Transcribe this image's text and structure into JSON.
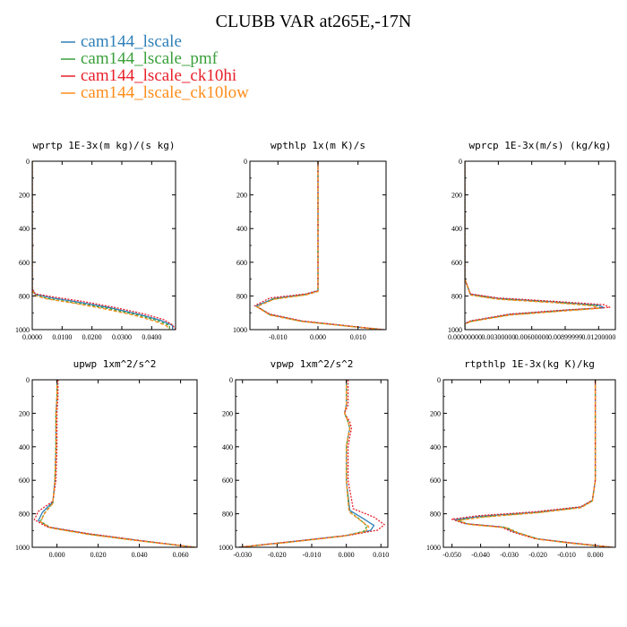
{
  "figure": {
    "title": "CLUBB VAR at265E,-17N"
  },
  "legend": [
    {
      "label": "cam144_lscale",
      "color": "#2f7fb8"
    },
    {
      "label": "cam144_lscale_pmf",
      "color": "#3aa03a"
    },
    {
      "label": "cam144_lscale_ck10hi",
      "color": "#e8202a"
    },
    {
      "label": "cam144_lscale_ck10low",
      "color": "#ff8c1a"
    }
  ],
  "chart_data": [
    {
      "type": "line",
      "title": "wprtp  1E-3x(m kg)/(s kg)",
      "xlim": [
        0,
        0.048
      ],
      "ylim": [
        0,
        1000
      ],
      "y_inverted": true,
      "xticks": [
        0,
        0.01,
        0.02,
        0.03,
        0.04
      ],
      "xtick_labels": [
        "0.0000",
        "0.0100",
        "0.0200",
        "0.0300",
        "0.0400"
      ],
      "yticks": [
        0,
        200,
        400,
        600,
        800,
        1000
      ],
      "ytick_labels": [
        "0",
        "200",
        "400",
        "600",
        "800",
        "1000"
      ],
      "series": [
        {
          "color": "#2f7fb8",
          "x": [
            0,
            0,
            0,
            0,
            0,
            0,
            0.001,
            0.006,
            0.015,
            0.026,
            0.036,
            0.043,
            0.047,
            0.047
          ],
          "y": [
            0,
            200,
            400,
            600,
            700,
            760,
            790,
            810,
            835,
            870,
            910,
            945,
            975,
            1000
          ]
        },
        {
          "color": "#3aa03a",
          "x": [
            0,
            0,
            0,
            0,
            0,
            0,
            0.001,
            0.005,
            0.014,
            0.025,
            0.035,
            0.042,
            0.046,
            0.046
          ],
          "y": [
            0,
            200,
            400,
            600,
            700,
            765,
            795,
            815,
            840,
            873,
            912,
            947,
            976,
            1000
          ]
        },
        {
          "color": "#e8202a",
          "x": [
            0,
            0,
            0,
            0,
            0,
            0,
            0.001,
            0.007,
            0.016,
            0.027,
            0.037,
            0.044,
            0.047,
            0.048
          ],
          "y": [
            0,
            200,
            400,
            600,
            700,
            758,
            787,
            806,
            830,
            866,
            905,
            940,
            972,
            1000
          ]
        },
        {
          "color": "#ff8c1a",
          "x": [
            0,
            0,
            0,
            0,
            0,
            0,
            0.001,
            0.005,
            0.014,
            0.024,
            0.034,
            0.041,
            0.045,
            0.046
          ],
          "y": [
            0,
            200,
            400,
            600,
            700,
            768,
            798,
            818,
            843,
            876,
            914,
            949,
            978,
            1000
          ]
        }
      ]
    },
    {
      "type": "line",
      "title": "wpthlp  1x(m K)/s",
      "xlim": [
        -0.017,
        0.017
      ],
      "ylim": [
        0,
        1000
      ],
      "y_inverted": true,
      "xticks": [
        -0.01,
        0,
        0.01
      ],
      "xtick_labels": [
        "-0.010",
        "0.000",
        "0.010"
      ],
      "yticks": [
        0,
        200,
        400,
        600,
        800,
        1000
      ],
      "ytick_labels": [
        "0",
        "200",
        "400",
        "600",
        "800",
        "1000"
      ],
      "series": [
        {
          "color": "#2f7fb8",
          "x": [
            0,
            0,
            0,
            0,
            0,
            0,
            -0.003,
            -0.011,
            -0.0155,
            -0.012,
            -0.004,
            0.008,
            0.016
          ],
          "y": [
            0,
            200,
            400,
            600,
            700,
            770,
            790,
            815,
            860,
            910,
            950,
            980,
            1000
          ]
        },
        {
          "color": "#3aa03a",
          "x": [
            0,
            0,
            0,
            0,
            0,
            0,
            -0.003,
            -0.011,
            -0.0152,
            -0.012,
            -0.004,
            0.008,
            0.016
          ],
          "y": [
            0,
            200,
            400,
            600,
            700,
            772,
            792,
            818,
            862,
            912,
            951,
            980,
            1000
          ]
        },
        {
          "color": "#e8202a",
          "x": [
            0,
            0,
            0,
            0,
            0,
            0,
            -0.003,
            -0.012,
            -0.0158,
            -0.012,
            -0.004,
            0.008,
            0.0165
          ],
          "y": [
            0,
            200,
            400,
            600,
            700,
            768,
            788,
            812,
            858,
            908,
            948,
            979,
            1000
          ]
        },
        {
          "color": "#ff8c1a",
          "x": [
            0,
            0,
            0,
            0,
            0,
            0,
            -0.003,
            -0.011,
            -0.0153,
            -0.012,
            -0.004,
            0.008,
            0.016
          ],
          "y": [
            0,
            200,
            400,
            600,
            700,
            774,
            794,
            820,
            864,
            914,
            952,
            981,
            1000
          ]
        }
      ]
    },
    {
      "type": "line",
      "title": "wprcp  1E-3x(m/s) (kg/kg)",
      "xlim": [
        0,
        0.0135
      ],
      "ylim": [
        0,
        1000
      ],
      "y_inverted": true,
      "xticks": [
        0,
        0.003,
        0.006,
        0.009,
        0.012
      ],
      "xtick_labels": [
        "0.00000000",
        "0.00300000",
        "0.00600000",
        "0.00899999",
        "0.01200000"
      ],
      "yticks": [
        0,
        200,
        400,
        600,
        800,
        1000
      ],
      "ytick_labels": [
        "0",
        "200",
        "400",
        "600",
        "800",
        "1000"
      ],
      "series": [
        {
          "color": "#2f7fb8",
          "x": [
            0,
            0,
            0,
            0,
            0,
            0.0005,
            0.003,
            0.008,
            0.012,
            0.0125,
            0.009,
            0.004,
            0.0005,
            0,
            0
          ],
          "y": [
            0,
            200,
            400,
            600,
            700,
            790,
            815,
            835,
            855,
            870,
            885,
            910,
            950,
            965,
            1000
          ]
        },
        {
          "color": "#3aa03a",
          "x": [
            0,
            0,
            0,
            0,
            0,
            0.0005,
            0.003,
            0.008,
            0.0118,
            0.0122,
            0.009,
            0.004,
            0.0005,
            0,
            0
          ],
          "y": [
            0,
            200,
            400,
            600,
            700,
            793,
            818,
            838,
            857,
            872,
            887,
            912,
            952,
            966,
            1000
          ]
        },
        {
          "color": "#e8202a",
          "x": [
            0,
            0,
            0,
            0,
            0,
            0.0005,
            0.003,
            0.008,
            0.0125,
            0.013,
            0.009,
            0.004,
            0.0005,
            0,
            0
          ],
          "y": [
            0,
            200,
            400,
            600,
            700,
            788,
            812,
            832,
            852,
            868,
            883,
            908,
            948,
            964,
            1000
          ]
        },
        {
          "color": "#ff8c1a",
          "x": [
            0,
            0,
            0,
            0,
            0,
            0.0005,
            0.003,
            0.008,
            0.0115,
            0.012,
            0.009,
            0.004,
            0.0005,
            0,
            0
          ],
          "y": [
            0,
            200,
            400,
            600,
            700,
            795,
            820,
            840,
            859,
            874,
            889,
            914,
            953,
            967,
            1000
          ]
        }
      ]
    },
    {
      "type": "line",
      "title": "upwp  1xm^2/s^2",
      "xlim": [
        -0.012,
        0.068
      ],
      "ylim": [
        0,
        1000
      ],
      "y_inverted": true,
      "xticks": [
        0,
        0.02,
        0.04,
        0.06
      ],
      "xtick_labels": [
        "0.000",
        "0.020",
        "0.040",
        "0.060"
      ],
      "yticks": [
        0,
        200,
        400,
        600,
        800,
        1000
      ],
      "ytick_labels": [
        "0",
        "200",
        "400",
        "600",
        "800",
        "1000"
      ],
      "series": [
        {
          "color": "#2f7fb8",
          "x": [
            0,
            0,
            -0.0005,
            -0.0005,
            -0.001,
            -0.002,
            -0.007,
            -0.009,
            -0.004,
            0.015,
            0.04,
            0.067
          ],
          "y": [
            0,
            100,
            200,
            400,
            600,
            730,
            790,
            840,
            880,
            920,
            960,
            1000
          ]
        },
        {
          "color": "#3aa03a",
          "x": [
            0,
            0,
            -0.0005,
            -0.0005,
            -0.001,
            -0.002,
            -0.006,
            -0.008,
            -0.003,
            0.015,
            0.04,
            0.067
          ],
          "y": [
            0,
            100,
            200,
            400,
            600,
            735,
            795,
            845,
            883,
            922,
            961,
            1000
          ]
        },
        {
          "color": "#e8202a",
          "x": [
            0.0005,
            0.0005,
            0,
            0,
            -0.0005,
            -0.002,
            -0.009,
            -0.011,
            -0.005,
            0.015,
            0.04,
            0.067
          ],
          "y": [
            0,
            100,
            200,
            400,
            600,
            725,
            785,
            835,
            877,
            918,
            959,
            1000
          ]
        },
        {
          "color": "#ff8c1a",
          "x": [
            0,
            0,
            -0.0005,
            -0.0005,
            -0.001,
            -0.002,
            -0.006,
            -0.008,
            -0.003,
            0.015,
            0.04,
            0.067
          ],
          "y": [
            0,
            100,
            200,
            400,
            600,
            738,
            798,
            848,
            885,
            923,
            962,
            1000
          ]
        }
      ]
    },
    {
      "type": "line",
      "title": "vpwp  1xm^2/s^2",
      "xlim": [
        -0.032,
        0.012
      ],
      "ylim": [
        0,
        1000
      ],
      "y_inverted": true,
      "xticks": [
        -0.03,
        -0.02,
        -0.01,
        0,
        0.01
      ],
      "xtick_labels": [
        "-0.030",
        "-0.020",
        "-0.010",
        "0.000",
        "0.010"
      ],
      "yticks": [
        0,
        200,
        400,
        600,
        800,
        1000
      ],
      "ytick_labels": [
        "0",
        "200",
        "400",
        "600",
        "800",
        "1000"
      ],
      "series": [
        {
          "color": "#2f7fb8",
          "x": [
            0,
            0,
            0,
            -0.0005,
            0.0005,
            0.001,
            0.0005,
            0,
            0,
            0.001,
            0.005,
            0.008,
            0.007,
            0,
            -0.015,
            -0.031
          ],
          "y": [
            0,
            100,
            150,
            200,
            250,
            290,
            340,
            400,
            600,
            780,
            830,
            870,
            900,
            930,
            965,
            1000
          ]
        },
        {
          "color": "#3aa03a",
          "x": [
            0,
            0,
            0,
            -0.0005,
            0.0005,
            0.001,
            0.0005,
            0,
            0,
            0.0008,
            0.004,
            0.006,
            0.005,
            -0.001,
            -0.015,
            -0.031
          ],
          "y": [
            0,
            100,
            150,
            200,
            250,
            290,
            340,
            400,
            600,
            785,
            835,
            875,
            905,
            933,
            966,
            1000
          ]
        },
        {
          "color": "#e8202a",
          "x": [
            0.0005,
            0.0005,
            0.0005,
            -0.0005,
            0.001,
            0.0015,
            0.001,
            0.0005,
            0.0005,
            0.002,
            0.008,
            0.011,
            0.009,
            0.001,
            -0.015,
            -0.031
          ],
          "y": [
            0,
            100,
            150,
            200,
            250,
            290,
            340,
            400,
            600,
            770,
            820,
            865,
            898,
            928,
            964,
            1000
          ]
        },
        {
          "color": "#ff8c1a",
          "x": [
            0,
            0,
            0,
            -0.0005,
            0.0005,
            0.001,
            0.0005,
            0,
            0,
            0.0008,
            0.004,
            0.0065,
            0.0055,
            -0.001,
            -0.015,
            -0.031
          ],
          "y": [
            0,
            100,
            150,
            200,
            250,
            290,
            340,
            400,
            600,
            788,
            838,
            877,
            906,
            934,
            967,
            1000
          ]
        }
      ]
    },
    {
      "type": "line",
      "title": "rtpthlp  1E-3x(kg K)/kg",
      "xlim": [
        -0.053,
        0.007
      ],
      "ylim": [
        0,
        1000
      ],
      "y_inverted": true,
      "xticks": [
        -0.05,
        -0.04,
        -0.03,
        -0.02,
        -0.01,
        0
      ],
      "xtick_labels": [
        "-0.050",
        "-0.040",
        "-0.030",
        "-0.020",
        "-0.010",
        "0.000"
      ],
      "yticks": [
        0,
        200,
        400,
        600,
        800,
        1000
      ],
      "ytick_labels": [
        "0",
        "200",
        "400",
        "600",
        "800",
        "1000"
      ],
      "series": [
        {
          "color": "#2f7fb8",
          "x": [
            0,
            0,
            0,
            0,
            -0.001,
            -0.005,
            -0.02,
            -0.04,
            -0.049,
            -0.045,
            -0.032,
            -0.028,
            -0.02,
            -0.008,
            0.006
          ],
          "y": [
            0,
            200,
            400,
            600,
            720,
            760,
            790,
            815,
            835,
            860,
            880,
            910,
            950,
            975,
            1000
          ]
        },
        {
          "color": "#3aa03a",
          "x": [
            0,
            0,
            0,
            0,
            -0.001,
            -0.005,
            -0.02,
            -0.039,
            -0.048,
            -0.044,
            -0.031,
            -0.027,
            -0.02,
            -0.008,
            0.006
          ],
          "y": [
            0,
            200,
            400,
            600,
            722,
            762,
            792,
            818,
            838,
            862,
            882,
            912,
            951,
            976,
            1000
          ]
        },
        {
          "color": "#e8202a",
          "x": [
            0,
            0,
            0,
            0,
            -0.001,
            -0.005,
            -0.021,
            -0.041,
            -0.05,
            -0.046,
            -0.033,
            -0.029,
            -0.021,
            -0.008,
            0.006
          ],
          "y": [
            0,
            200,
            400,
            600,
            718,
            758,
            788,
            812,
            832,
            858,
            878,
            908,
            949,
            974,
            1000
          ]
        },
        {
          "color": "#ff8c1a",
          "x": [
            0,
            0,
            0,
            0,
            -0.001,
            -0.005,
            -0.02,
            -0.039,
            -0.048,
            -0.044,
            -0.031,
            -0.027,
            -0.02,
            -0.008,
            0.006
          ],
          "y": [
            0,
            200,
            400,
            600,
            724,
            764,
            794,
            820,
            840,
            864,
            884,
            914,
            952,
            977,
            1000
          ]
        }
      ]
    }
  ]
}
